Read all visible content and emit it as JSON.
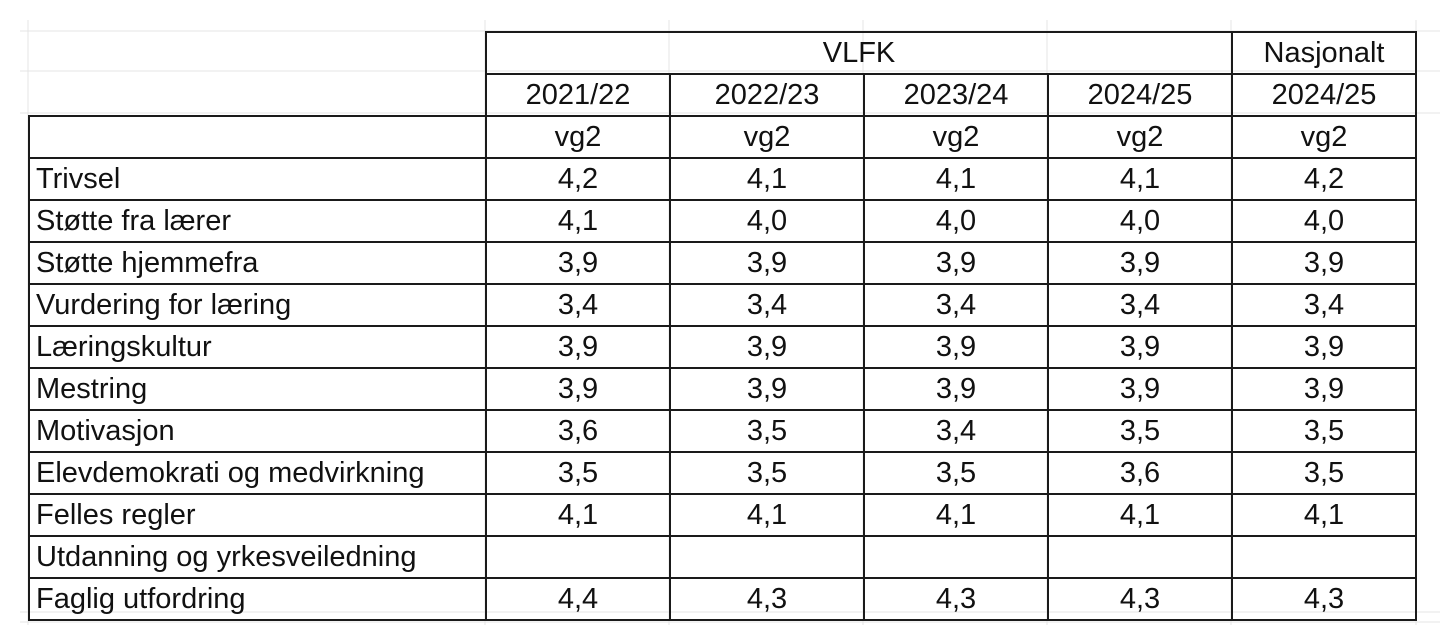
{
  "header": {
    "group_vlfk": "VLFK",
    "group_national": "Nasjonalt",
    "years": [
      "2021/22",
      "2022/23",
      "2023/24",
      "2024/25",
      "2024/25"
    ],
    "grades": [
      "vg2",
      "vg2",
      "vg2",
      "vg2",
      "vg2"
    ]
  },
  "rows": [
    {
      "label": "Trivsel",
      "values": [
        "4,2",
        "4,1",
        "4,1",
        "4,1",
        "4,2"
      ]
    },
    {
      "label": "Støtte fra lærer",
      "values": [
        "4,1",
        "4,0",
        "4,0",
        "4,0",
        "4,0"
      ]
    },
    {
      "label": "Støtte hjemmefra",
      "values": [
        "3,9",
        "3,9",
        "3,9",
        "3,9",
        "3,9"
      ]
    },
    {
      "label": "Vurdering for læring",
      "values": [
        "3,4",
        "3,4",
        "3,4",
        "3,4",
        "3,4"
      ]
    },
    {
      "label": "Læringskultur",
      "values": [
        "3,9",
        "3,9",
        "3,9",
        "3,9",
        "3,9"
      ]
    },
    {
      "label": "Mestring",
      "values": [
        "3,9",
        "3,9",
        "3,9",
        "3,9",
        "3,9"
      ]
    },
    {
      "label": "Motivasjon",
      "values": [
        "3,6",
        "3,5",
        "3,4",
        "3,5",
        "3,5"
      ]
    },
    {
      "label": "Elevdemokrati og medvirkning",
      "values": [
        "3,5",
        "3,5",
        "3,5",
        "3,6",
        "3,5"
      ]
    },
    {
      "label": "Felles regler",
      "values": [
        "4,1",
        "4,1",
        "4,1",
        "4,1",
        "4,1"
      ]
    },
    {
      "label": "Utdanning og yrkesveiledning",
      "values": [
        "",
        "",
        "",
        "",
        ""
      ]
    },
    {
      "label": "Faglig utfordring",
      "values": [
        "4,4",
        "4,3",
        "4,3",
        "4,3",
        "4,3"
      ]
    }
  ],
  "colors": {
    "border": "#1a1a1a",
    "gridline": "#e4e4e4",
    "text": "#111111",
    "background": "#ffffff"
  }
}
